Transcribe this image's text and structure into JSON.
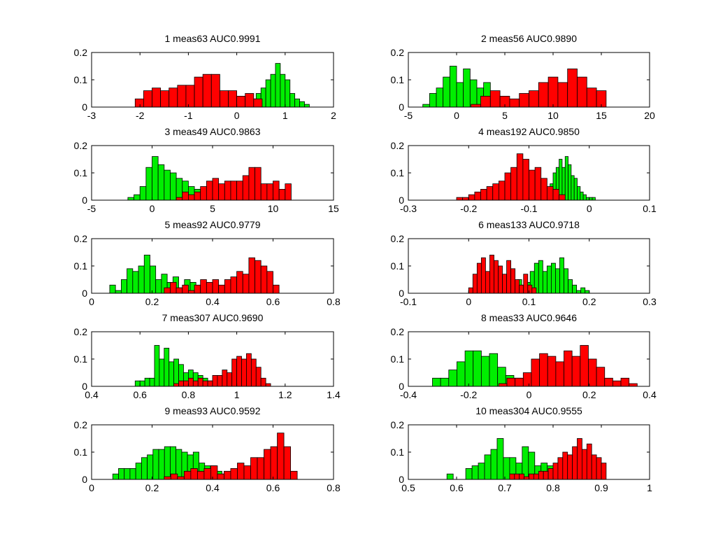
{
  "chart_data": [
    {
      "type": "histogram",
      "title": "1 meas63 AUC0.9991",
      "xlim": [
        -3,
        2
      ],
      "xticks": [
        -3,
        -2,
        -1,
        0,
        1,
        2
      ],
      "ylim": [
        0,
        0.2
      ],
      "yticks": [
        0,
        0.1,
        0.2
      ],
      "series": [
        {
          "color": "#00ee00",
          "bins": [
            0.2,
            0.3,
            0.4,
            0.5,
            0.6,
            0.7,
            0.8,
            0.9,
            1.0,
            1.1,
            1.2,
            1.3,
            1.4,
            1.5
          ],
          "values": [
            0.01,
            0.03,
            0.05,
            0.07,
            0.1,
            0.12,
            0.16,
            0.12,
            0.1,
            0.05,
            0.03,
            0.02,
            0.01
          ]
        },
        {
          "color": "#ff0000",
          "bins": [
            -2.1,
            -1.925,
            -1.75,
            -1.575,
            -1.4,
            -1.225,
            -1.05,
            -0.875,
            -0.7,
            -0.525,
            -0.35,
            -0.175,
            0,
            0.175,
            0.35,
            0.525
          ],
          "values": [
            0.03,
            0.06,
            0.07,
            0.06,
            0.07,
            0.08,
            0.08,
            0.11,
            0.12,
            0.12,
            0.06,
            0.06,
            0.04,
            0.05,
            0.03
          ]
        }
      ]
    },
    {
      "type": "histogram",
      "title": "2 meas56 AUC0.9890",
      "xlim": [
        -5,
        20
      ],
      "xticks": [
        -5,
        0,
        5,
        10,
        15,
        20
      ],
      "ylim": [
        0,
        0.2
      ],
      "yticks": [
        0,
        0.1,
        0.2
      ],
      "series": [
        {
          "color": "#00ee00",
          "bins": [
            -3.5,
            -2.8,
            -2.1,
            -1.4,
            -0.7,
            0,
            0.7,
            1.4,
            2.1,
            2.8,
            3.5,
            4.2,
            4.9
          ],
          "values": [
            0.01,
            0.05,
            0.07,
            0.11,
            0.15,
            0.09,
            0.14,
            0.1,
            0.07,
            0.09,
            0.04,
            0.03
          ]
        },
        {
          "color": "#ff0000",
          "bins": [
            1.5,
            2.5,
            3.5,
            4.5,
            5.5,
            6.5,
            7.5,
            8.5,
            9.5,
            10.5,
            11.5,
            12.5,
            13.5,
            14.5,
            15.5
          ],
          "values": [
            0.01,
            0.04,
            0.06,
            0.04,
            0.03,
            0.05,
            0.06,
            0.09,
            0.11,
            0.09,
            0.14,
            0.11,
            0.07,
            0.06
          ]
        }
      ]
    },
    {
      "type": "histogram",
      "title": "3 meas49 AUC0.9863",
      "xlim": [
        -5,
        15
      ],
      "xticks": [
        -5,
        0,
        5,
        10,
        15
      ],
      "ylim": [
        0,
        0.2
      ],
      "yticks": [
        0,
        0.1,
        0.2
      ],
      "series": [
        {
          "color": "#00ee00",
          "bins": [
            -2,
            -1.5,
            -1,
            -0.5,
            0,
            0.5,
            1,
            1.5,
            2,
            2.5,
            3,
            3.5,
            4,
            4.5,
            5
          ],
          "values": [
            0.01,
            0.02,
            0.05,
            0.12,
            0.16,
            0.13,
            0.11,
            0.1,
            0.08,
            0.07,
            0.05,
            0.04,
            0.02,
            0.03
          ]
        },
        {
          "color": "#ff0000",
          "bins": [
            2,
            2.5,
            3,
            3.5,
            4,
            4.5,
            5,
            5.5,
            6,
            6.5,
            7,
            7.5,
            8,
            8.5,
            9,
            9.5,
            10,
            10.5,
            11,
            11.5
          ],
          "values": [
            0.01,
            0.03,
            0.02,
            0.03,
            0.05,
            0.07,
            0.08,
            0.06,
            0.07,
            0.07,
            0.07,
            0.09,
            0.12,
            0.12,
            0.06,
            0.06,
            0.07,
            0.04,
            0.06
          ]
        }
      ]
    },
    {
      "type": "histogram",
      "title": "4 meas192 AUC0.9850",
      "xlim": [
        -0.3,
        0.1
      ],
      "xticks": [
        -0.3,
        -0.2,
        -0.1,
        0,
        0.1
      ],
      "ylim": [
        0,
        0.2
      ],
      "yticks": [
        0,
        0.1,
        0.2
      ],
      "series": [
        {
          "color": "#00ee00",
          "bins": [
            -0.08,
            -0.075,
            -0.07,
            -0.065,
            -0.06,
            -0.055,
            -0.05,
            -0.045,
            -0.04,
            -0.035,
            -0.03,
            -0.025,
            -0.02,
            -0.015,
            -0.01,
            -0.005,
            0,
            0.005,
            0.01
          ],
          "values": [
            0.01,
            0.01,
            0.03,
            0.06,
            0.1,
            0.12,
            0.15,
            0.12,
            0.16,
            0.13,
            0.09,
            0.08,
            0.05,
            0.03,
            0.02,
            0.01,
            0.01,
            0.01
          ]
        },
        {
          "color": "#ff0000",
          "bins": [
            -0.22,
            -0.21,
            -0.2,
            -0.19,
            -0.18,
            -0.17,
            -0.16,
            -0.15,
            -0.14,
            -0.13,
            -0.12,
            -0.11,
            -0.1,
            -0.09,
            -0.08,
            -0.07,
            -0.06,
            -0.05,
            -0.04
          ],
          "values": [
            0.01,
            0.01,
            0.02,
            0.03,
            0.04,
            0.05,
            0.06,
            0.07,
            0.1,
            0.12,
            0.17,
            0.15,
            0.11,
            0.12,
            0.08,
            0.05,
            0.04,
            0.02
          ]
        }
      ]
    },
    {
      "type": "histogram",
      "title": "5 meas92 AUC0.9779",
      "xlim": [
        0,
        0.8
      ],
      "xticks": [
        0,
        0.2,
        0.4,
        0.6,
        0.8
      ],
      "ylim": [
        0,
        0.2
      ],
      "yticks": [
        0,
        0.1,
        0.2
      ],
      "series": [
        {
          "color": "#00ee00",
          "bins": [
            0.06,
            0.079,
            0.098,
            0.117,
            0.136,
            0.155,
            0.174,
            0.193,
            0.212,
            0.231,
            0.25,
            0.269,
            0.288,
            0.307,
            0.326,
            0.345,
            0.364,
            0.383,
            0.402,
            0.421,
            0.44
          ],
          "values": [
            0.03,
            0.01,
            0.05,
            0.09,
            0.08,
            0.1,
            0.14,
            0.1,
            0.05,
            0.07,
            0.04,
            0.06,
            0.02,
            0.05,
            0.04,
            0.02,
            0.03,
            0.02,
            0.01,
            0.01
          ]
        },
        {
          "color": "#ff0000",
          "bins": [
            0.24,
            0.26,
            0.28,
            0.3,
            0.32,
            0.34,
            0.36,
            0.38,
            0.4,
            0.42,
            0.44,
            0.46,
            0.48,
            0.5,
            0.52,
            0.54,
            0.56,
            0.58,
            0.6,
            0.62
          ],
          "values": [
            0.02,
            0.04,
            0.02,
            0.03,
            0.01,
            0.03,
            0.05,
            0.04,
            0.05,
            0.03,
            0.05,
            0.06,
            0.08,
            0.07,
            0.13,
            0.12,
            0.1,
            0.08,
            0.03
          ]
        }
      ]
    },
    {
      "type": "histogram",
      "title": "6 meas133 AUC0.9718",
      "xlim": [
        -0.1,
        0.3
      ],
      "xticks": [
        -0.1,
        0,
        0.1,
        0.2,
        0.3
      ],
      "ylim": [
        0,
        0.2
      ],
      "yticks": [
        0,
        0.1,
        0.2
      ],
      "series": [
        {
          "color": "#00ee00",
          "bins": [
            0.06,
            0.067,
            0.074,
            0.081,
            0.088,
            0.095,
            0.102,
            0.109,
            0.116,
            0.123,
            0.13,
            0.137,
            0.144,
            0.151,
            0.158,
            0.165,
            0.172,
            0.179,
            0.186,
            0.193,
            0.2
          ],
          "values": [
            0.01,
            0.02,
            0.04,
            0.05,
            0.03,
            0.04,
            0.08,
            0.11,
            0.12,
            0.08,
            0.1,
            0.11,
            0.09,
            0.13,
            0.09,
            0.05,
            0.03,
            0.01,
            0.02,
            0.01
          ]
        },
        {
          "color": "#ff0000",
          "bins": [
            0,
            0.007,
            0.014,
            0.021,
            0.028,
            0.035,
            0.042,
            0.049,
            0.056,
            0.063,
            0.07,
            0.077,
            0.084,
            0.091,
            0.098,
            0.105,
            0.112
          ],
          "values": [
            0.02,
            0.07,
            0.11,
            0.13,
            0.08,
            0.14,
            0.12,
            0.1,
            0.07,
            0.12,
            0.09,
            0.05,
            0.03,
            0.07,
            0.03,
            0.02
          ]
        }
      ]
    },
    {
      "type": "histogram",
      "title": "7 meas307 AUC0.9690",
      "xlim": [
        0.4,
        1.4
      ],
      "xticks": [
        0.4,
        0.6,
        0.8,
        1,
        1.2,
        1.4
      ],
      "ylim": [
        0,
        0.2
      ],
      "yticks": [
        0,
        0.1,
        0.2
      ],
      "series": [
        {
          "color": "#00ee00",
          "bins": [
            0.58,
            0.6,
            0.62,
            0.64,
            0.66,
            0.68,
            0.7,
            0.72,
            0.74,
            0.76,
            0.78,
            0.8,
            0.82,
            0.84,
            0.86,
            0.88,
            0.9,
            0.92,
            0.94
          ],
          "values": [
            0.02,
            0.02,
            0.03,
            0.03,
            0.15,
            0.1,
            0.14,
            0.09,
            0.1,
            0.08,
            0.05,
            0.06,
            0.05,
            0.04,
            0.03,
            0.02,
            0.02,
            0.01
          ]
        },
        {
          "color": "#ff0000",
          "bins": [
            0.74,
            0.76,
            0.78,
            0.8,
            0.82,
            0.84,
            0.86,
            0.88,
            0.9,
            0.92,
            0.94,
            0.96,
            0.98,
            1,
            1.02,
            1.04,
            1.06,
            1.08,
            1.1,
            1.12,
            1.14
          ],
          "values": [
            0.01,
            0.02,
            0.02,
            0.03,
            0.02,
            0.03,
            0.02,
            0.02,
            0.04,
            0.04,
            0.06,
            0.05,
            0.1,
            0.11,
            0.1,
            0.12,
            0.1,
            0.07,
            0.03,
            0.01
          ]
        }
      ]
    },
    {
      "type": "histogram",
      "title": "8 meas33 AUC0.9646",
      "xlim": [
        -0.4,
        0.4
      ],
      "xticks": [
        -0.4,
        -0.2,
        0,
        0.2,
        0.4
      ],
      "ylim": [
        0,
        0.2
      ],
      "yticks": [
        0,
        0.1,
        0.2
      ],
      "series": [
        {
          "color": "#00ee00",
          "bins": [
            -0.32,
            -0.293,
            -0.266,
            -0.239,
            -0.212,
            -0.185,
            -0.158,
            -0.131,
            -0.104,
            -0.077,
            -0.05,
            -0.023,
            0.004,
            0.031,
            0.058
          ],
          "values": [
            0.03,
            0.03,
            0.06,
            0.09,
            0.13,
            0.13,
            0.11,
            0.12,
            0.07,
            0.04,
            0.03,
            0.02,
            0.02,
            0.01
          ]
        },
        {
          "color": "#ff0000",
          "bins": [
            -0.1,
            -0.073,
            -0.046,
            -0.019,
            0.008,
            0.035,
            0.062,
            0.089,
            0.116,
            0.143,
            0.17,
            0.197,
            0.224,
            0.251,
            0.278,
            0.305,
            0.332,
            0.359
          ],
          "values": [
            0.01,
            0.03,
            0.03,
            0.05,
            0.1,
            0.12,
            0.11,
            0.09,
            0.13,
            0.11,
            0.15,
            0.1,
            0.07,
            0.03,
            0.02,
            0.03,
            0.01
          ]
        }
      ]
    },
    {
      "type": "histogram",
      "title": "9 meas93 AUC0.9592",
      "xlim": [
        0,
        0.8
      ],
      "xticks": [
        0,
        0.2,
        0.4,
        0.6,
        0.8
      ],
      "ylim": [
        0,
        0.2
      ],
      "yticks": [
        0,
        0.1,
        0.2
      ],
      "series": [
        {
          "color": "#00ee00",
          "bins": [
            0.07,
            0.089,
            0.108,
            0.127,
            0.146,
            0.165,
            0.184,
            0.203,
            0.222,
            0.241,
            0.26,
            0.279,
            0.298,
            0.317,
            0.336,
            0.355,
            0.374,
            0.393,
            0.412,
            0.431,
            0.45
          ],
          "values": [
            0.02,
            0.04,
            0.04,
            0.04,
            0.06,
            0.08,
            0.09,
            0.11,
            0.11,
            0.12,
            0.12,
            0.11,
            0.1,
            0.09,
            0.1,
            0.06,
            0.05,
            0.05,
            0.03,
            0.02
          ]
        },
        {
          "color": "#ff0000",
          "bins": [
            0.24,
            0.262,
            0.284,
            0.306,
            0.328,
            0.35,
            0.372,
            0.394,
            0.416,
            0.438,
            0.46,
            0.482,
            0.504,
            0.526,
            0.548,
            0.57,
            0.592,
            0.614,
            0.636,
            0.658,
            0.68
          ],
          "values": [
            0.01,
            0.02,
            0.01,
            0.03,
            0.04,
            0.03,
            0.04,
            0.05,
            0.02,
            0.03,
            0.04,
            0.06,
            0.05,
            0.08,
            0.08,
            0.11,
            0.12,
            0.17,
            0.12,
            0.03
          ]
        }
      ]
    },
    {
      "type": "histogram",
      "title": "10 meas304 AUC0.9555",
      "xlim": [
        0.5,
        1
      ],
      "xticks": [
        0.5,
        0.6,
        0.7,
        0.8,
        0.9,
        1
      ],
      "ylim": [
        0,
        0.2
      ],
      "yticks": [
        0,
        0.1,
        0.2
      ],
      "series": [
        {
          "color": "#00ee00",
          "bins": [
            0.58,
            0.593,
            0.606,
            0.619,
            0.632,
            0.645,
            0.658,
            0.671,
            0.684,
            0.697,
            0.71,
            0.723,
            0.736,
            0.749,
            0.762,
            0.775,
            0.788,
            0.801,
            0.814,
            0.827,
            0.84
          ],
          "values": [
            0.02,
            0,
            0,
            0.04,
            0.05,
            0.06,
            0.09,
            0.11,
            0.15,
            0.08,
            0.08,
            0.06,
            0.12,
            0.1,
            0.05,
            0.06,
            0.05,
            0.04,
            0.03,
            0.01
          ]
        },
        {
          "color": "#ff0000",
          "bins": [
            0.71,
            0.72,
            0.73,
            0.74,
            0.75,
            0.76,
            0.77,
            0.78,
            0.79,
            0.8,
            0.81,
            0.82,
            0.83,
            0.84,
            0.85,
            0.86,
            0.87,
            0.88,
            0.89,
            0.9,
            0.91
          ],
          "values": [
            0.02,
            0.02,
            0.02,
            0.01,
            0.02,
            0.02,
            0.03,
            0.03,
            0.04,
            0.06,
            0.08,
            0.1,
            0.09,
            0.12,
            0.15,
            0.11,
            0.13,
            0.09,
            0.08,
            0.06
          ]
        }
      ]
    }
  ]
}
